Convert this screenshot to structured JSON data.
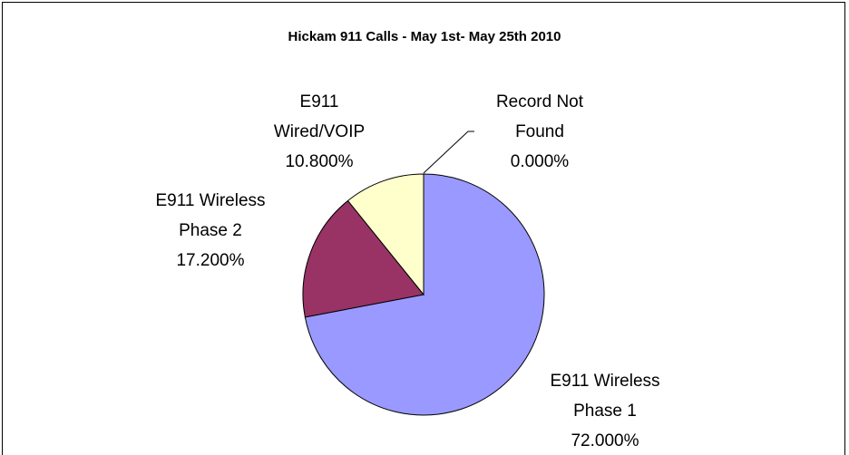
{
  "chart_data": {
    "type": "pie",
    "title": "Hickam 911 Calls - May 1st- May 25th 2010",
    "categories": [
      "E911 Wireless Phase 1",
      "E911 Wireless Phase 2",
      "E911 Wired/VOIP",
      "Record Not Found"
    ],
    "values": [
      72,
      17.2,
      10.8,
      0
    ],
    "value_labels": [
      "72.000%",
      "17.200%",
      "10.800%",
      "0.000%"
    ],
    "colors": [
      "#9999ff",
      "#993366",
      "#ffffcc",
      "#ffffff"
    ]
  }
}
